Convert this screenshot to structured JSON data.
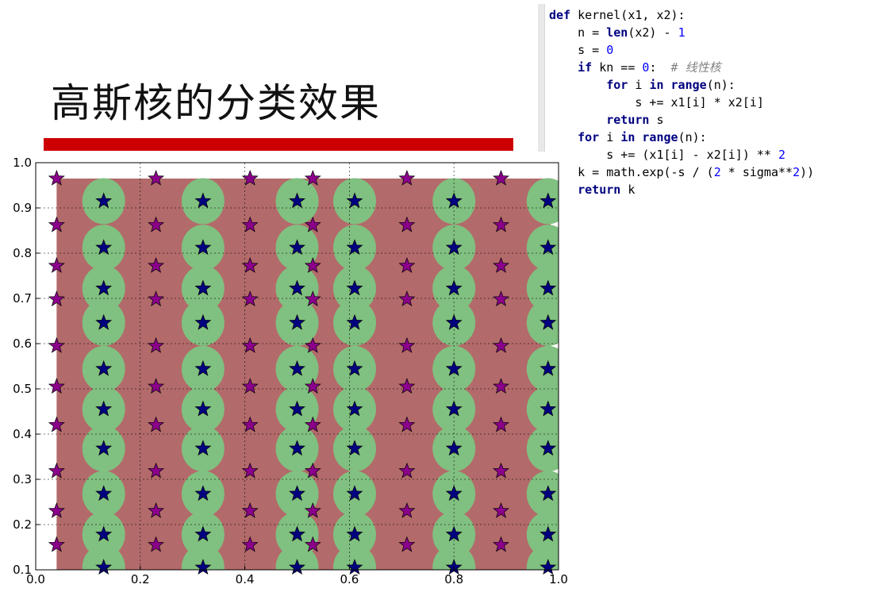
{
  "slide": {
    "title": "高斯核的分类效果"
  },
  "code": {
    "lines": [
      [
        {
          "t": "kw",
          "v": "def"
        },
        {
          "t": "pl",
          "v": " kernel(x1, x2):"
        }
      ],
      [
        {
          "t": "pl",
          "v": "    n = "
        },
        {
          "t": "kw",
          "v": "len"
        },
        {
          "t": "pl",
          "v": "(x2) - "
        },
        {
          "t": "num",
          "v": "1"
        }
      ],
      [
        {
          "t": "pl",
          "v": "    s = "
        },
        {
          "t": "num",
          "v": "0"
        }
      ],
      [
        {
          "t": "pl",
          "v": "    "
        },
        {
          "t": "kw",
          "v": "if"
        },
        {
          "t": "pl",
          "v": " kn == "
        },
        {
          "t": "num",
          "v": "0"
        },
        {
          "t": "pl",
          "v": ":  "
        },
        {
          "t": "cmt",
          "v": "# 线性核"
        }
      ],
      [
        {
          "t": "pl",
          "v": "        "
        },
        {
          "t": "kw",
          "v": "for"
        },
        {
          "t": "pl",
          "v": " i "
        },
        {
          "t": "kw",
          "v": "in"
        },
        {
          "t": "pl",
          "v": " "
        },
        {
          "t": "kw",
          "v": "range"
        },
        {
          "t": "pl",
          "v": "(n):"
        }
      ],
      [
        {
          "t": "pl",
          "v": "            s += x1[i] * x2[i]"
        }
      ],
      [
        {
          "t": "pl",
          "v": "        "
        },
        {
          "t": "kw",
          "v": "return"
        },
        {
          "t": "pl",
          "v": " s"
        }
      ],
      [
        {
          "t": "pl",
          "v": "    "
        },
        {
          "t": "kw",
          "v": "for"
        },
        {
          "t": "pl",
          "v": " i "
        },
        {
          "t": "kw",
          "v": "in"
        },
        {
          "t": "pl",
          "v": " "
        },
        {
          "t": "kw",
          "v": "range"
        },
        {
          "t": "pl",
          "v": "(n):"
        }
      ],
      [
        {
          "t": "pl",
          "v": "        s += (x1[i] - x2[i]) ** "
        },
        {
          "t": "num",
          "v": "2"
        }
      ],
      [
        {
          "t": "pl",
          "v": "    k = math.exp(-s / ("
        },
        {
          "t": "num",
          "v": "2"
        },
        {
          "t": "pl",
          "v": " * sigma**"
        },
        {
          "t": "num",
          "v": "2"
        },
        {
          "t": "pl",
          "v": "))"
        }
      ],
      [
        {
          "t": "pl",
          "v": "    "
        },
        {
          "t": "kw",
          "v": "return"
        },
        {
          "t": "pl",
          "v": " k"
        }
      ]
    ]
  },
  "chart_data": {
    "type": "scatter",
    "xlim": [
      0.0,
      1.0
    ],
    "ylim": [
      0.1,
      1.0
    ],
    "x_ticks": [
      "0.0",
      "0.2",
      "0.4",
      "0.6",
      "0.8",
      "1.0"
    ],
    "y_ticks": [
      "0.1",
      "0.2",
      "0.3",
      "0.4",
      "0.5",
      "0.6",
      "0.7",
      "0.8",
      "0.9",
      "1.0"
    ],
    "grid": true,
    "background_region": {
      "x": [
        0.04,
        0.985
      ],
      "y": [
        0.1,
        0.965
      ],
      "color": "#b36a6a"
    },
    "blob_color": "#80c080",
    "class_colors": {
      "class_a": "#8b008b",
      "class_b": "#000080"
    },
    "class_a_points": [
      [
        0.04,
        0.965
      ],
      [
        0.04,
        0.862
      ],
      [
        0.04,
        0.772
      ],
      [
        0.04,
        0.698
      ],
      [
        0.04,
        0.595
      ],
      [
        0.04,
        0.505
      ],
      [
        0.04,
        0.42
      ],
      [
        0.04,
        0.318
      ],
      [
        0.04,
        0.23
      ],
      [
        0.04,
        0.155
      ],
      [
        0.23,
        0.965
      ],
      [
        0.23,
        0.862
      ],
      [
        0.23,
        0.772
      ],
      [
        0.23,
        0.698
      ],
      [
        0.23,
        0.595
      ],
      [
        0.23,
        0.505
      ],
      [
        0.23,
        0.42
      ],
      [
        0.23,
        0.318
      ],
      [
        0.23,
        0.23
      ],
      [
        0.23,
        0.155
      ],
      [
        0.41,
        0.965
      ],
      [
        0.41,
        0.862
      ],
      [
        0.41,
        0.772
      ],
      [
        0.41,
        0.698
      ],
      [
        0.41,
        0.595
      ],
      [
        0.41,
        0.505
      ],
      [
        0.41,
        0.42
      ],
      [
        0.41,
        0.318
      ],
      [
        0.41,
        0.23
      ],
      [
        0.41,
        0.155
      ],
      [
        0.53,
        0.965
      ],
      [
        0.53,
        0.862
      ],
      [
        0.53,
        0.772
      ],
      [
        0.53,
        0.698
      ],
      [
        0.53,
        0.595
      ],
      [
        0.53,
        0.505
      ],
      [
        0.53,
        0.42
      ],
      [
        0.53,
        0.318
      ],
      [
        0.53,
        0.23
      ],
      [
        0.53,
        0.155
      ],
      [
        0.71,
        0.965
      ],
      [
        0.71,
        0.862
      ],
      [
        0.71,
        0.772
      ],
      [
        0.71,
        0.698
      ],
      [
        0.71,
        0.595
      ],
      [
        0.71,
        0.505
      ],
      [
        0.71,
        0.42
      ],
      [
        0.71,
        0.318
      ],
      [
        0.71,
        0.23
      ],
      [
        0.71,
        0.155
      ],
      [
        0.89,
        0.965
      ],
      [
        0.89,
        0.862
      ],
      [
        0.89,
        0.772
      ],
      [
        0.89,
        0.698
      ],
      [
        0.89,
        0.595
      ],
      [
        0.89,
        0.505
      ],
      [
        0.89,
        0.42
      ],
      [
        0.89,
        0.318
      ],
      [
        0.89,
        0.23
      ],
      [
        0.89,
        0.155
      ]
    ],
    "class_b_points": [
      [
        0.13,
        0.915
      ],
      [
        0.13,
        0.812
      ],
      [
        0.13,
        0.722
      ],
      [
        0.13,
        0.646
      ],
      [
        0.13,
        0.544
      ],
      [
        0.13,
        0.455
      ],
      [
        0.13,
        0.368
      ],
      [
        0.13,
        0.268
      ],
      [
        0.13,
        0.178
      ],
      [
        0.13,
        0.105
      ],
      [
        0.32,
        0.915
      ],
      [
        0.32,
        0.812
      ],
      [
        0.32,
        0.722
      ],
      [
        0.32,
        0.646
      ],
      [
        0.32,
        0.544
      ],
      [
        0.32,
        0.455
      ],
      [
        0.32,
        0.368
      ],
      [
        0.32,
        0.268
      ],
      [
        0.32,
        0.178
      ],
      [
        0.32,
        0.105
      ],
      [
        0.5,
        0.915
      ],
      [
        0.5,
        0.812
      ],
      [
        0.5,
        0.722
      ],
      [
        0.5,
        0.646
      ],
      [
        0.5,
        0.544
      ],
      [
        0.5,
        0.455
      ],
      [
        0.5,
        0.368
      ],
      [
        0.5,
        0.268
      ],
      [
        0.5,
        0.178
      ],
      [
        0.5,
        0.105
      ],
      [
        0.61,
        0.915
      ],
      [
        0.61,
        0.812
      ],
      [
        0.61,
        0.722
      ],
      [
        0.61,
        0.646
      ],
      [
        0.61,
        0.544
      ],
      [
        0.61,
        0.455
      ],
      [
        0.61,
        0.368
      ],
      [
        0.61,
        0.268
      ],
      [
        0.61,
        0.178
      ],
      [
        0.61,
        0.105
      ],
      [
        0.8,
        0.915
      ],
      [
        0.8,
        0.812
      ],
      [
        0.8,
        0.722
      ],
      [
        0.8,
        0.646
      ],
      [
        0.8,
        0.544
      ],
      [
        0.8,
        0.455
      ],
      [
        0.8,
        0.368
      ],
      [
        0.8,
        0.268
      ],
      [
        0.8,
        0.178
      ],
      [
        0.8,
        0.105
      ],
      [
        0.98,
        0.915
      ],
      [
        0.98,
        0.812
      ],
      [
        0.98,
        0.722
      ],
      [
        0.98,
        0.646
      ],
      [
        0.98,
        0.544
      ],
      [
        0.98,
        0.455
      ],
      [
        0.98,
        0.368
      ],
      [
        0.98,
        0.268
      ],
      [
        0.98,
        0.178
      ],
      [
        0.98,
        0.105
      ]
    ]
  }
}
